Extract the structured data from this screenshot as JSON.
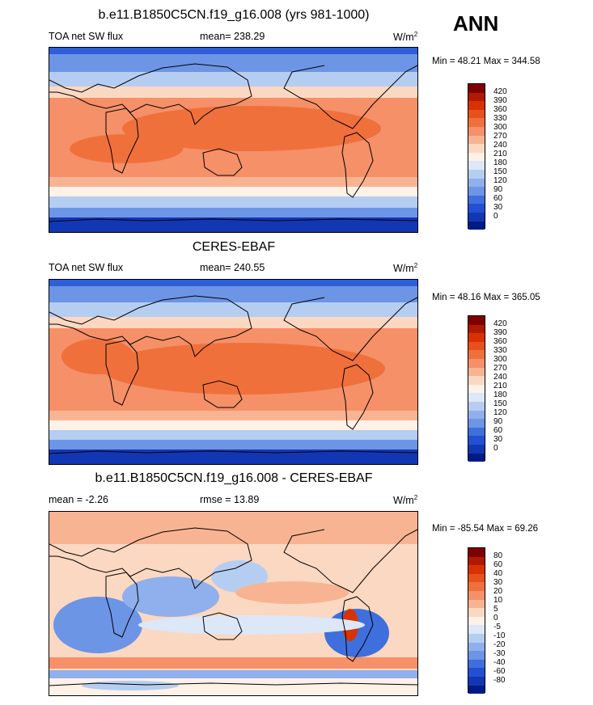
{
  "season": "ANN",
  "panels": [
    {
      "title": "b.e11.B1850C5CN.f19_g16.008 (yrs 981-1000)",
      "left": "TOA net SW flux",
      "center": "mean= 238.29",
      "units": "W/m",
      "units_sup": "2",
      "minmax": "Min =  48.21 Max = 344.58",
      "colorbar": {
        "labels": [
          "420",
          "390",
          "360",
          "330",
          "300",
          "270",
          "240",
          "210",
          "180",
          "150",
          "120",
          "90",
          "60",
          "30",
          "0"
        ],
        "colors": [
          "#7f0000",
          "#b01a00",
          "#d83200",
          "#e8501e",
          "#f0703c",
          "#f59068",
          "#f8b492",
          "#fbd8c2",
          "#fdf1e8",
          "#dce7f8",
          "#b6cdf2",
          "#8fb0ec",
          "#6d95e6",
          "#3f6fdc",
          "#2450cf",
          "#1237b4",
          "#001a85"
        ]
      }
    },
    {
      "title": "CERES-EBAF",
      "left": "TOA net SW flux",
      "center": "mean= 240.55",
      "units": "W/m",
      "units_sup": "2",
      "minmax": "Min =  48.16 Max = 365.05",
      "colorbar": {
        "labels": [
          "420",
          "390",
          "360",
          "330",
          "300",
          "270",
          "240",
          "210",
          "180",
          "150",
          "120",
          "90",
          "60",
          "30",
          "0"
        ],
        "colors": [
          "#7f0000",
          "#b01a00",
          "#d83200",
          "#e8501e",
          "#f0703c",
          "#f59068",
          "#f8b492",
          "#fbd8c2",
          "#fdf1e8",
          "#dce7f8",
          "#b6cdf2",
          "#8fb0ec",
          "#6d95e6",
          "#3f6fdc",
          "#2450cf",
          "#1237b4",
          "#001a85"
        ]
      }
    },
    {
      "title": "b.e11.B1850C5CN.f19_g16.008 - CERES-EBAF",
      "left": "mean =  -2.26",
      "center": "rmse =  13.89",
      "units": "W/m",
      "units_sup": "2",
      "minmax": "Min = -85.54 Max =  69.26",
      "colorbar": {
        "labels": [
          "80",
          "60",
          "40",
          "30",
          "20",
          "10",
          "5",
          "0",
          "-5",
          "-10",
          "-20",
          "-30",
          "-40",
          "-60",
          "-80"
        ],
        "colors": [
          "#7f0000",
          "#b01a00",
          "#d83200",
          "#e8501e",
          "#f0703c",
          "#f59068",
          "#f8b492",
          "#fbd8c2",
          "#fdf1e8",
          "#dce7f8",
          "#b6cdf2",
          "#8fb0ec",
          "#6d95e6",
          "#3f6fdc",
          "#2450cf",
          "#1237b4",
          "#001a85"
        ]
      }
    }
  ]
}
